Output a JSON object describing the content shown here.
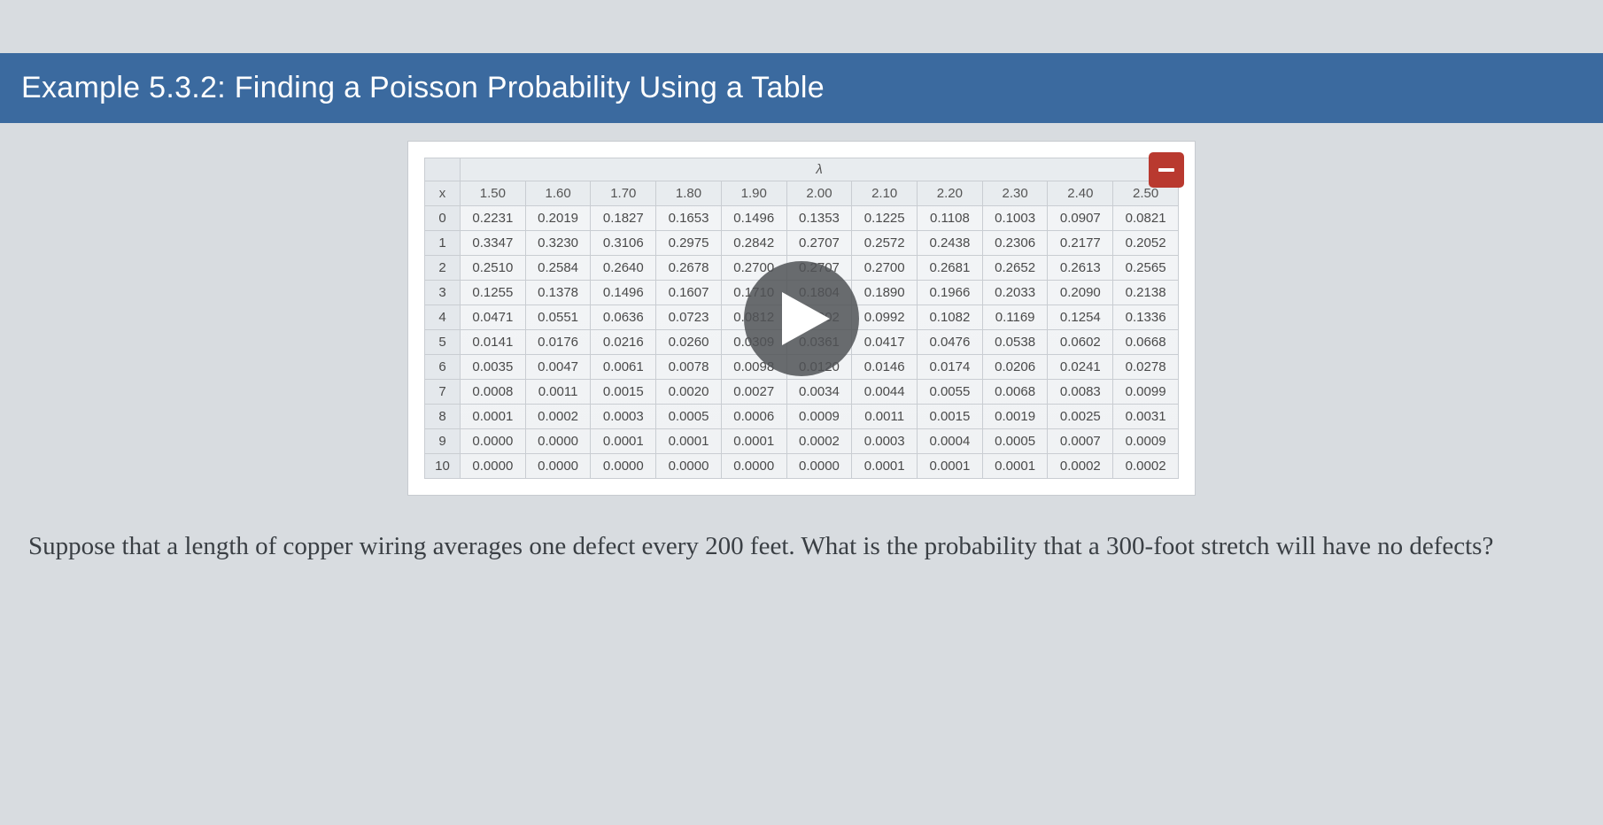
{
  "title": "Example 5.3.2: Finding a Poisson Probability Using a Table",
  "table": {
    "lambda_symbol": "λ",
    "x_label": "x",
    "columns": [
      "1.50",
      "1.60",
      "1.70",
      "1.80",
      "1.90",
      "2.00",
      "2.10",
      "2.20",
      "2.30",
      "2.40",
      "2.50"
    ],
    "rows": [
      {
        "x": "0",
        "v": [
          "0.2231",
          "0.2019",
          "0.1827",
          "0.1653",
          "0.1496",
          "0.1353",
          "0.1225",
          "0.1108",
          "0.1003",
          "0.0907",
          "0.0821"
        ]
      },
      {
        "x": "1",
        "v": [
          "0.3347",
          "0.3230",
          "0.3106",
          "0.2975",
          "0.2842",
          "0.2707",
          "0.2572",
          "0.2438",
          "0.2306",
          "0.2177",
          "0.2052"
        ]
      },
      {
        "x": "2",
        "v": [
          "0.2510",
          "0.2584",
          "0.2640",
          "0.2678",
          "0.2700",
          "0.2707",
          "0.2700",
          "0.2681",
          "0.2652",
          "0.2613",
          "0.2565"
        ]
      },
      {
        "x": "3",
        "v": [
          "0.1255",
          "0.1378",
          "0.1496",
          "0.1607",
          "0.1710",
          "0.1804",
          "0.1890",
          "0.1966",
          "0.2033",
          "0.2090",
          "0.2138"
        ]
      },
      {
        "x": "4",
        "v": [
          "0.0471",
          "0.0551",
          "0.0636",
          "0.0723",
          "0.0812",
          "0.0902",
          "0.0992",
          "0.1082",
          "0.1169",
          "0.1254",
          "0.1336"
        ]
      },
      {
        "x": "5",
        "v": [
          "0.0141",
          "0.0176",
          "0.0216",
          "0.0260",
          "0.0309",
          "0.0361",
          "0.0417",
          "0.0476",
          "0.0538",
          "0.0602",
          "0.0668"
        ]
      },
      {
        "x": "6",
        "v": [
          "0.0035",
          "0.0047",
          "0.0061",
          "0.0078",
          "0.0098",
          "0.0120",
          "0.0146",
          "0.0174",
          "0.0206",
          "0.0241",
          "0.0278"
        ]
      },
      {
        "x": "7",
        "v": [
          "0.0008",
          "0.0011",
          "0.0015",
          "0.0020",
          "0.0027",
          "0.0034",
          "0.0044",
          "0.0055",
          "0.0068",
          "0.0083",
          "0.0099"
        ]
      },
      {
        "x": "8",
        "v": [
          "0.0001",
          "0.0002",
          "0.0003",
          "0.0005",
          "0.0006",
          "0.0009",
          "0.0011",
          "0.0015",
          "0.0019",
          "0.0025",
          "0.0031"
        ]
      },
      {
        "x": "9",
        "v": [
          "0.0000",
          "0.0000",
          "0.0001",
          "0.0001",
          "0.0001",
          "0.0002",
          "0.0003",
          "0.0004",
          "0.0005",
          "0.0007",
          "0.0009"
        ]
      },
      {
        "x": "10",
        "v": [
          "0.0000",
          "0.0000",
          "0.0000",
          "0.0000",
          "0.0000",
          "0.0000",
          "0.0001",
          "0.0001",
          "0.0001",
          "0.0002",
          "0.0002"
        ]
      }
    ]
  },
  "question": "Suppose that a length of copper wiring averages one defect every 200 feet. What is the probability that a 300-foot stretch will have no defects?",
  "colors": {
    "title_bg": "#3b6a9f",
    "title_text": "#ffffff",
    "page_bg": "#d8dce0",
    "video_bg": "#ffffff",
    "table_border": "#c9cdd2",
    "play_bg": "rgba(80,82,86,0.85)",
    "mini_btn_bg": "#b9392f",
    "question_color": "#3a3f44"
  }
}
